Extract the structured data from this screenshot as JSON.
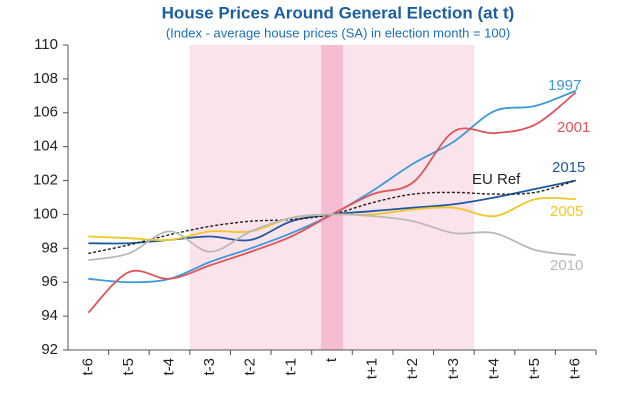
{
  "chart_data": {
    "type": "line",
    "title": "House Prices Around General Election (at t)",
    "subtitle": "(Index - average house prices (SA) in election month = 100)",
    "categories": [
      "t-6",
      "t-5",
      "t-4",
      "t-3",
      "t-2",
      "t-1",
      "t",
      "t+1",
      "t+2",
      "t+3",
      "t+4",
      "t+5",
      "t+6"
    ],
    "ylim": [
      92,
      110
    ],
    "yticks": [
      92,
      94,
      96,
      98,
      100,
      102,
      104,
      106,
      108,
      110
    ],
    "shaded_categories": [
      "t-3",
      "t+3"
    ],
    "highlight_category": "t",
    "series": [
      {
        "name": "1997",
        "color": "#3c9ad6",
        "values": [
          96.2,
          96.0,
          96.2,
          97.2,
          98.0,
          98.9,
          100,
          101.4,
          103.0,
          104.3,
          106.1,
          106.4,
          107.3
        ]
      },
      {
        "name": "2001",
        "color": "#e0545a",
        "values": [
          94.2,
          96.6,
          96.2,
          97.0,
          97.8,
          98.7,
          100,
          101.2,
          101.9,
          104.9,
          104.8,
          105.3,
          107.2
        ]
      },
      {
        "name": "2015",
        "color": "#1f5aa0",
        "values": [
          98.3,
          98.3,
          98.5,
          98.7,
          98.5,
          99.6,
          100,
          100.2,
          100.4,
          100.6,
          101.0,
          101.5,
          102.0
        ]
      },
      {
        "name": "EU Ref",
        "color": "#222222",
        "dashed": true,
        "values": [
          97.7,
          98.2,
          98.8,
          99.3,
          99.6,
          99.7,
          100,
          100.7,
          101.2,
          101.3,
          101.2,
          101.3,
          102.0
        ]
      },
      {
        "name": "2005",
        "color": "#f2c624",
        "values": [
          98.7,
          98.6,
          98.5,
          99.0,
          99.0,
          99.8,
          100,
          100.0,
          100.3,
          100.4,
          99.9,
          100.9,
          100.9
        ]
      },
      {
        "name": "2010",
        "color": "#b9b9b9",
        "values": [
          97.3,
          97.7,
          99.0,
          97.8,
          99.0,
          99.8,
          100,
          99.9,
          99.6,
          98.9,
          98.9,
          97.9,
          97.6
        ]
      }
    ]
  }
}
